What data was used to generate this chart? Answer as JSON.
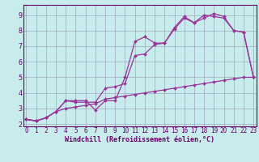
{
  "xlabel": "Windchill (Refroidissement éolien,°C)",
  "bg_color": "#c8ecec",
  "line_color": "#993399",
  "grid_color": "#9999bb",
  "axis_color": "#660066",
  "spine_color": "#660066",
  "xticks": [
    0,
    1,
    2,
    3,
    4,
    5,
    6,
    7,
    8,
    9,
    10,
    11,
    12,
    13,
    14,
    15,
    16,
    17,
    18,
    19,
    20,
    21,
    22,
    23
  ],
  "yticks": [
    2,
    3,
    4,
    5,
    6,
    7,
    8,
    9
  ],
  "line1_x": [
    0,
    1,
    2,
    3,
    4,
    5,
    6,
    7,
    8,
    9,
    10,
    11,
    12,
    13,
    14,
    15,
    16,
    17,
    18,
    19,
    20,
    21,
    22,
    23
  ],
  "line1_y": [
    2.3,
    2.2,
    2.4,
    2.8,
    3.5,
    3.5,
    3.5,
    2.9,
    3.5,
    3.5,
    5.0,
    7.3,
    7.6,
    7.2,
    7.2,
    8.1,
    8.8,
    8.5,
    8.8,
    9.1,
    8.9,
    8.0,
    7.9,
    5.0
  ],
  "line2_x": [
    0,
    1,
    2,
    3,
    4,
    5,
    6,
    7,
    8,
    9,
    10,
    11,
    12,
    13,
    14,
    15,
    16,
    17,
    18,
    19,
    20,
    21,
    22,
    23
  ],
  "line2_y": [
    2.3,
    2.2,
    2.4,
    2.8,
    3.5,
    3.4,
    3.4,
    3.4,
    4.3,
    4.4,
    4.6,
    6.4,
    6.5,
    7.1,
    7.2,
    8.2,
    8.9,
    8.5,
    9.0,
    8.9,
    8.8,
    8.0,
    7.9,
    5.0
  ],
  "line3_x": [
    0,
    1,
    2,
    3,
    4,
    5,
    6,
    7,
    8,
    9,
    10,
    11,
    12,
    13,
    14,
    15,
    16,
    17,
    18,
    19,
    20,
    21,
    22,
    23
  ],
  "line3_y": [
    2.3,
    2.2,
    2.4,
    2.8,
    3.0,
    3.1,
    3.2,
    3.3,
    3.6,
    3.7,
    3.8,
    3.9,
    4.0,
    4.1,
    4.2,
    4.3,
    4.4,
    4.5,
    4.6,
    4.7,
    4.8,
    4.9,
    5.0,
    5.0
  ],
  "xlim": [
    -0.3,
    23.3
  ],
  "ylim": [
    1.85,
    9.65
  ],
  "marker_size": 2.0,
  "line_width": 0.9,
  "tick_fontsize": 5.5,
  "xlabel_fontsize": 6.0
}
